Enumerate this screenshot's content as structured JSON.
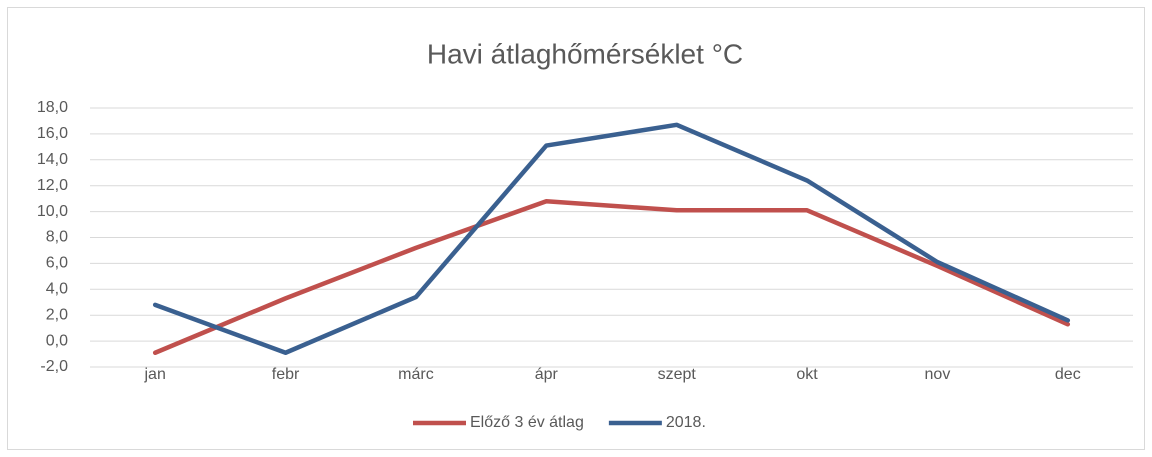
{
  "chart_data": {
    "type": "line",
    "title": "Havi átlaghőmérséklet °C",
    "categories": [
      "jan",
      "febr",
      "márc",
      "ápr",
      "szept",
      "okt",
      "nov",
      "dec"
    ],
    "series": [
      {
        "name": "Előző 3 év átlag",
        "color": "#c0504d",
        "values": [
          -0.9,
          3.3,
          7.2,
          10.8,
          10.1,
          10.1,
          5.8,
          1.3
        ]
      },
      {
        "name": "2018.",
        "color": "#3a6090",
        "values": [
          2.8,
          -0.9,
          3.4,
          15.1,
          16.7,
          12.4,
          6.1,
          1.6
        ]
      }
    ],
    "ylim": [
      -2,
      18
    ],
    "yticks": [
      {
        "value": -2,
        "label": "-2,0"
      },
      {
        "value": 0,
        "label": "0,0"
      },
      {
        "value": 2,
        "label": "2,0"
      },
      {
        "value": 4,
        "label": "4,0"
      },
      {
        "value": 6,
        "label": "6,0"
      },
      {
        "value": 8,
        "label": "8,0"
      },
      {
        "value": 10,
        "label": "10,0"
      },
      {
        "value": 12,
        "label": "12,0"
      },
      {
        "value": 14,
        "label": "14,0"
      },
      {
        "value": 16,
        "label": "16,0"
      },
      {
        "value": 18,
        "label": "18,0"
      }
    ],
    "grid": true,
    "legend": "bottom"
  }
}
